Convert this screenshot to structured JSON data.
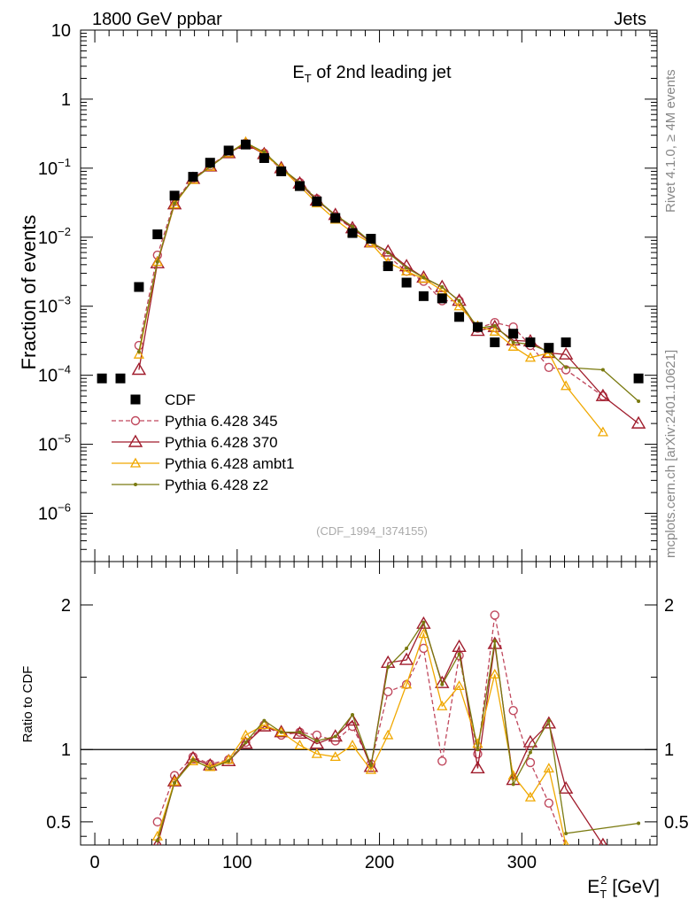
{
  "header": {
    "left": "1800 GeV ppbar",
    "right": "Jets"
  },
  "side_labels": {
    "rivet": "Rivet 4.1.0, ≥ 4M events",
    "mcplots": "mcplots.cern.ch [arXiv:2401.10621]"
  },
  "chart_data": [
    {
      "type": "scatter",
      "panel": "main",
      "title": "E_T of 2nd leading jet",
      "title_main": "E",
      "title_sub": "T",
      "title_rest": " of 2nd leading jet",
      "ylabel": "Fraction of events",
      "yscale": "log",
      "ylim": [
        2e-07,
        10
      ],
      "xlim": [
        -10,
        395
      ],
      "watermark": "(CDF_1994_I374155)",
      "ytick_labels": [
        {
          "v": 10,
          "label": "10"
        },
        {
          "v": 1,
          "label": "1"
        },
        {
          "v": 0.1,
          "base": "10",
          "exp": "−1"
        },
        {
          "v": 0.01,
          "base": "10",
          "exp": "−2"
        },
        {
          "v": 0.001,
          "base": "10",
          "exp": "−3"
        },
        {
          "v": 0.0001,
          "base": "10",
          "exp": "−4"
        },
        {
          "v": 1e-05,
          "base": "10",
          "exp": "−5"
        },
        {
          "v": 1e-06,
          "base": "10",
          "exp": "−6"
        }
      ],
      "legend": [
        {
          "label": "CDF",
          "color": "#000000",
          "marker": "square"
        },
        {
          "label": "Pythia 6.428 345",
          "color": "#c0485d",
          "marker": "circle",
          "dash": true
        },
        {
          "label": "Pythia 6.428 370",
          "color": "#a01c2c",
          "marker": "triangle"
        },
        {
          "label": "Pythia 6.428 ambt1",
          "color": "#f0a800",
          "marker": "triangle-small"
        },
        {
          "label": "Pythia 6.428 z2",
          "color": "#7a7a10",
          "marker": "dot"
        }
      ],
      "data_x": [
        5,
        18,
        31,
        44,
        56,
        69,
        81,
        94,
        106,
        119,
        131,
        144,
        156,
        169,
        181,
        194,
        206,
        219,
        231,
        244,
        256,
        269,
        281,
        294,
        306,
        319,
        331,
        382
      ],
      "data_y": [
        9e-05,
        9e-05,
        0.0019,
        0.011,
        0.04,
        0.075,
        0.12,
        0.18,
        0.22,
        0.14,
        0.09,
        0.055,
        0.033,
        0.019,
        0.0115,
        0.0095,
        0.0038,
        0.0022,
        0.0014,
        0.0013,
        0.0007,
        0.0005,
        0.0003,
        0.0004,
        0.0003,
        0.00025,
        0.0003,
        9e-05
      ],
      "series": [
        {
          "name": "Pythia 6.428 345",
          "x": [
            31,
            44,
            56,
            69,
            81,
            94,
            106,
            119,
            131,
            144,
            156,
            169,
            181,
            194,
            206,
            219,
            231,
            244,
            256,
            269,
            281,
            294,
            306,
            319,
            331,
            357
          ],
          "y": [
            0.00027,
            0.0055,
            0.033,
            0.071,
            0.108,
            0.168,
            0.23,
            0.165,
            0.095,
            0.062,
            0.036,
            0.02,
            0.0133,
            0.0085,
            0.0053,
            0.0032,
            0.0023,
            0.0012,
            0.0012,
            0.00048,
            0.00058,
            0.0005,
            0.00027,
            0.00013,
            0.00012,
            5e-05
          ]
        },
        {
          "name": "Pythia 6.428 370",
          "x": [
            31,
            44,
            56,
            69,
            81,
            94,
            106,
            119,
            131,
            144,
            156,
            169,
            181,
            194,
            206,
            219,
            231,
            244,
            256,
            269,
            281,
            294,
            306,
            319,
            331,
            357,
            382
          ],
          "y": [
            0.00012,
            0.0042,
            0.03,
            0.07,
            0.106,
            0.165,
            0.225,
            0.16,
            0.1,
            0.06,
            0.034,
            0.021,
            0.0135,
            0.0084,
            0.0062,
            0.0038,
            0.0026,
            0.0019,
            0.0012,
            0.00044,
            0.0005,
            0.00032,
            0.00031,
            0.00021,
            0.0002,
            5e-05,
            2e-05
          ]
        },
        {
          "name": "Pythia 6.428 ambt1",
          "x": [
            31,
            44,
            56,
            69,
            81,
            94,
            106,
            119,
            131,
            144,
            156,
            169,
            181,
            194,
            206,
            219,
            231,
            244,
            256,
            269,
            281,
            294,
            306,
            319,
            331,
            357
          ],
          "y": [
            0.0002,
            0.0044,
            0.03,
            0.068,
            0.105,
            0.165,
            0.24,
            0.16,
            0.1,
            0.055,
            0.031,
            0.018,
            0.0117,
            0.0082,
            0.0043,
            0.0032,
            0.0025,
            0.0017,
            0.001,
            0.00052,
            0.00043,
            0.00026,
            0.00018,
            0.00021,
            7e-05,
            1.5e-05
          ]
        },
        {
          "name": "Pythia 6.428 z2",
          "x": [
            31,
            44,
            56,
            69,
            81,
            94,
            106,
            119,
            131,
            144,
            156,
            169,
            181,
            194,
            206,
            219,
            231,
            244,
            256,
            269,
            281,
            294,
            306,
            319,
            331,
            357,
            382
          ],
          "y": [
            0.00022,
            0.0044,
            0.031,
            0.068,
            0.104,
            0.165,
            0.235,
            0.17,
            0.1,
            0.062,
            0.035,
            0.021,
            0.0143,
            0.0085,
            0.006,
            0.0036,
            0.0026,
            0.0019,
            0.0012,
            0.00048,
            0.00052,
            0.0003,
            0.00028,
            0.00022,
            0.00013,
            0.00012,
            4.2e-05
          ]
        }
      ]
    },
    {
      "type": "line",
      "panel": "ratio",
      "ylabel": "Ratio to CDF",
      "xlabel_main": "E",
      "xlabel_sub": "T",
      "xlabel_sup": "2",
      "xlabel_rest": " [GeV]",
      "ylim": [
        0.34,
        2.3
      ],
      "xlim": [
        -10,
        395
      ],
      "yticks": [
        0.5,
        1,
        2
      ],
      "ytick_labels": [
        "0.5",
        "1",
        "2"
      ],
      "xticks": [
        0,
        100,
        200,
        300
      ],
      "xtick_labels": [
        "0",
        "100",
        "200",
        "300"
      ],
      "series": [
        {
          "name": "Pythia 6.428 345",
          "x": [
            44,
            56,
            69,
            81,
            94,
            106,
            119,
            131,
            144,
            156,
            169,
            181,
            194,
            206,
            219,
            231,
            244,
            256,
            269,
            281,
            294,
            306,
            319,
            331
          ],
          "y": [
            0.5,
            0.82,
            0.95,
            0.9,
            0.93,
            1.05,
            1.17,
            1.1,
            1.12,
            1.1,
            1.06,
            1.16,
            0.9,
            1.4,
            1.45,
            1.7,
            0.92,
            1.65,
            0.97,
            1.93,
            1.27,
            0.91,
            0.63,
            0.33
          ]
        },
        {
          "name": "Pythia 6.428 370",
          "x": [
            44,
            56,
            69,
            81,
            94,
            106,
            119,
            131,
            144,
            156,
            169,
            181,
            194,
            206,
            219,
            231,
            244,
            256,
            269,
            281,
            294,
            306,
            319,
            331,
            357
          ],
          "y": [
            0.34,
            0.78,
            0.94,
            0.89,
            0.92,
            1.04,
            1.16,
            1.12,
            1.11,
            1.04,
            1.09,
            1.2,
            0.88,
            1.6,
            1.62,
            1.87,
            1.46,
            1.71,
            0.87,
            1.73,
            0.79,
            1.05,
            1.18,
            0.73,
            0.34
          ]
        },
        {
          "name": "Pythia 6.428 ambt1",
          "x": [
            44,
            56,
            69,
            81,
            94,
            106,
            119,
            131,
            144,
            156,
            169,
            181,
            194,
            206,
            219,
            231,
            244,
            256,
            269,
            281,
            294,
            306,
            319,
            331
          ],
          "y": [
            0.4,
            0.78,
            0.92,
            0.88,
            0.93,
            1.1,
            1.17,
            1.12,
            1.03,
            0.97,
            0.95,
            1.03,
            0.86,
            1.1,
            1.45,
            1.8,
            1.3,
            1.44,
            1.04,
            1.52,
            0.82,
            0.67,
            0.87,
            0.34
          ]
        },
        {
          "name": "Pythia 6.428 z2",
          "x": [
            44,
            56,
            69,
            81,
            94,
            106,
            119,
            131,
            144,
            156,
            169,
            181,
            194,
            206,
            219,
            231,
            244,
            256,
            269,
            281,
            294,
            306,
            319,
            331,
            382
          ],
          "y": [
            0.37,
            0.77,
            0.93,
            0.87,
            0.92,
            1.05,
            1.2,
            1.12,
            1.12,
            1.06,
            1.09,
            1.24,
            0.89,
            1.57,
            1.7,
            1.88,
            1.45,
            1.66,
            1.0,
            1.75,
            0.76,
            0.98,
            1.2,
            0.42,
            0.49
          ]
        }
      ]
    }
  ]
}
